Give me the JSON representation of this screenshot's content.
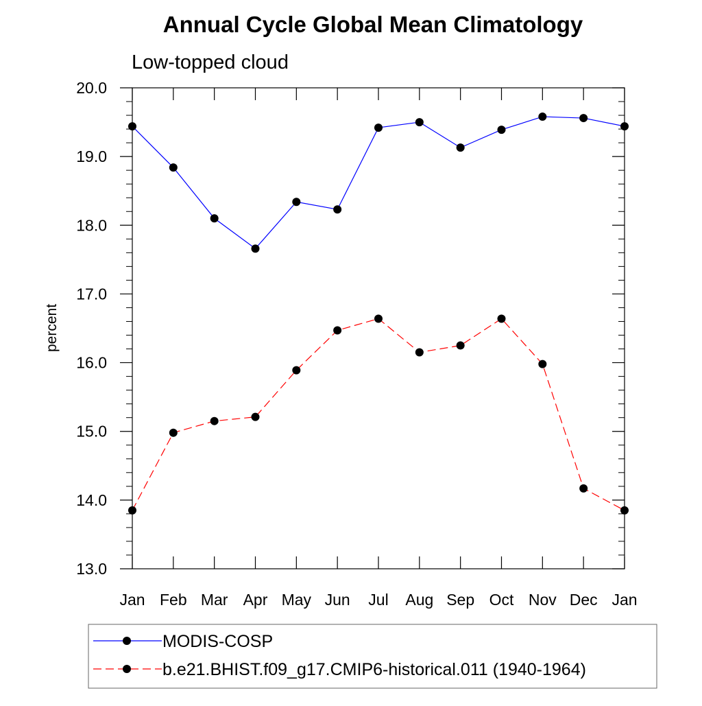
{
  "chart_data": {
    "type": "line",
    "title": "Annual Cycle Global Mean Climatology",
    "subtitle": "Low-topped cloud",
    "xlabel": "",
    "ylabel": "percent",
    "categories": [
      "Jan",
      "Feb",
      "Mar",
      "Apr",
      "May",
      "Jun",
      "Jul",
      "Aug",
      "Sep",
      "Oct",
      "Nov",
      "Dec",
      "Jan"
    ],
    "ylim": [
      13.0,
      20.0
    ],
    "yticks": [
      "13.0",
      "14.0",
      "15.0",
      "16.0",
      "17.0",
      "18.0",
      "19.0",
      "20.0"
    ],
    "grid": false,
    "legend_position": "bottom",
    "series": [
      {
        "name": "MODIS-COSP",
        "color": "#0000ff",
        "dash": "solid",
        "marker": "filled-circle",
        "values": [
          19.44,
          18.84,
          18.1,
          17.66,
          18.34,
          18.23,
          19.42,
          19.5,
          19.13,
          19.39,
          19.58,
          19.56,
          19.44
        ]
      },
      {
        "name": "b.e21.BHIST.f09_g17.CMIP6-historical.011 (1940-1964)",
        "color": "#ff0000",
        "dash": "dashed",
        "marker": "filled-circle",
        "values": [
          13.85,
          14.98,
          15.15,
          15.21,
          15.89,
          16.47,
          16.64,
          16.15,
          16.25,
          16.64,
          15.98,
          14.17,
          13.85
        ]
      }
    ]
  }
}
